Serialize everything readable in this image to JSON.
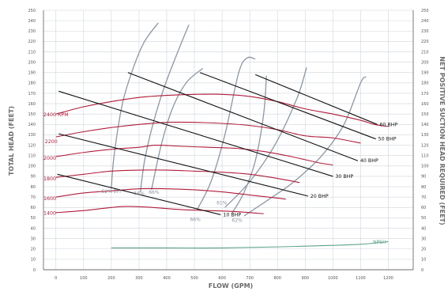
{
  "chart_data": {
    "type": "line",
    "title": "",
    "xlabel": "FLOW (GPM)",
    "ylabel": "TOTAL HEAD (FEET)",
    "y2label": "NET POSITIVE SUCTION HEAD REQUIRED (FEET)",
    "xlim": [
      -45,
      1290
    ],
    "ylim": [
      0,
      250
    ],
    "x_ticks": [
      0,
      100,
      200,
      300,
      400,
      500,
      600,
      700,
      800,
      900,
      1000,
      1100,
      1200
    ],
    "y_ticks": [
      0,
      10,
      20,
      30,
      40,
      50,
      60,
      70,
      80,
      90,
      100,
      110,
      120,
      130,
      140,
      150,
      160,
      170,
      180,
      190,
      200,
      210,
      220,
      230,
      240,
      250
    ],
    "grid": true,
    "colors": {
      "rpm": "#b01c3a",
      "bhp": "#111111",
      "eff": "#8c97a3",
      "npsh": "#5fa38a",
      "grid": "#cfd6dc"
    },
    "rpm_curves": [
      {
        "name": "1400 RPM",
        "label": "1400",
        "label_x": -45,
        "label_y": 53,
        "points": [
          [
            0,
            55
          ],
          [
            100,
            57
          ],
          [
            200,
            60
          ],
          [
            260,
            61
          ],
          [
            350,
            60
          ],
          [
            450,
            58
          ],
          [
            550,
            57
          ],
          [
            650,
            56
          ],
          [
            750,
            54
          ]
        ]
      },
      {
        "name": "1600 RPM",
        "label": "1600",
        "label_x": -45,
        "label_y": 67,
        "points": [
          [
            0,
            70
          ],
          [
            100,
            74
          ],
          [
            200,
            76
          ],
          [
            300,
            78
          ],
          [
            400,
            78
          ],
          [
            500,
            77
          ],
          [
            600,
            75
          ],
          [
            700,
            72
          ],
          [
            800,
            69
          ],
          [
            830,
            68
          ]
        ]
      },
      {
        "name": "1800 RPM",
        "label": "1800",
        "label_x": -45,
        "label_y": 86,
        "points": [
          [
            0,
            89
          ],
          [
            100,
            92
          ],
          [
            200,
            95
          ],
          [
            300,
            96
          ],
          [
            400,
            96
          ],
          [
            500,
            95
          ],
          [
            600,
            94
          ],
          [
            700,
            92
          ],
          [
            800,
            88
          ],
          [
            880,
            84
          ]
        ]
      },
      {
        "name": "2000 RPM",
        "label": "2000",
        "label_x": -45,
        "label_y": 106,
        "points": [
          [
            0,
            109
          ],
          [
            100,
            113
          ],
          [
            200,
            116
          ],
          [
            300,
            118
          ],
          [
            360,
            120
          ],
          [
            450,
            119
          ],
          [
            550,
            118
          ],
          [
            650,
            117
          ],
          [
            750,
            114
          ],
          [
            850,
            109
          ],
          [
            950,
            103
          ],
          [
            1000,
            101
          ]
        ]
      },
      {
        "name": "2200 RPM",
        "label": "2200",
        "label_x": -40,
        "label_y": 122,
        "points": [
          [
            0,
            128
          ],
          [
            100,
            133
          ],
          [
            200,
            137
          ],
          [
            300,
            140
          ],
          [
            400,
            142
          ],
          [
            500,
            142
          ],
          [
            600,
            141
          ],
          [
            700,
            139
          ],
          [
            800,
            135
          ],
          [
            900,
            129
          ],
          [
            1000,
            127
          ],
          [
            1100,
            122
          ]
        ]
      },
      {
        "name": "2400 RPM",
        "label": "2400 RPM",
        "label_x": -45,
        "label_y": 148,
        "points": [
          [
            0,
            150
          ],
          [
            100,
            157
          ],
          [
            200,
            162
          ],
          [
            300,
            166
          ],
          [
            400,
            168
          ],
          [
            500,
            169
          ],
          [
            600,
            169
          ],
          [
            700,
            167
          ],
          [
            800,
            162
          ],
          [
            900,
            155
          ],
          [
            1000,
            150
          ],
          [
            1100,
            144
          ],
          [
            1150,
            140
          ],
          [
            1200,
            138
          ]
        ]
      }
    ],
    "bhp_lines": [
      {
        "name": "10 BHP",
        "label": "10 BHP",
        "points": [
          [
            5,
            92
          ],
          [
            595,
            53
          ]
        ]
      },
      {
        "name": "20 BHP",
        "label": "20 BHP",
        "points": [
          [
            10,
            131
          ],
          [
            910,
            71
          ]
        ]
      },
      {
        "name": "30 BHP",
        "label": "30 BHP",
        "points": [
          [
            10,
            172
          ],
          [
            1000,
            90
          ]
        ]
      },
      {
        "name": "40 BHP",
        "label": "40 BHP",
        "points": [
          [
            260,
            190
          ],
          [
            1090,
            105
          ]
        ]
      },
      {
        "name": "50 BHP",
        "label": "50 BHP",
        "points": [
          [
            520,
            190
          ],
          [
            1155,
            126
          ]
        ]
      },
      {
        "name": "60 BHP",
        "label": "60 BHP",
        "points": [
          [
            720,
            188
          ],
          [
            1160,
            140
          ]
        ]
      }
    ],
    "efficiency_curves": [
      {
        "name": "52% EFF",
        "label": "52% EFF",
        "label_x": 165,
        "label_y": 74,
        "points": [
          [
            200,
            78
          ],
          [
            210,
            110
          ],
          [
            240,
            160
          ],
          [
            280,
            195
          ],
          [
            320,
            220
          ],
          [
            370,
            238
          ]
        ]
      },
      {
        "name": "56%",
        "label": "56%",
        "label_x": 282,
        "label_y": 72,
        "points": [
          [
            305,
            75
          ],
          [
            320,
            105
          ],
          [
            350,
            140
          ],
          [
            390,
            175
          ],
          [
            440,
            210
          ],
          [
            480,
            236
          ]
        ]
      },
      {
        "name": "66%",
        "label": "66%",
        "label_x": 335,
        "label_y": 73,
        "points": [
          [
            345,
            77
          ],
          [
            380,
            120
          ],
          [
            420,
            155
          ],
          [
            470,
            180
          ],
          [
            530,
            194
          ]
        ]
      },
      {
        "name": "66% inner",
        "label": "66%",
        "label_x": 484,
        "label_y": 47,
        "points": [
          [
            510,
            58
          ],
          [
            560,
            85
          ],
          [
            610,
            130
          ],
          [
            660,
            190
          ],
          [
            690,
            204
          ],
          [
            720,
            203
          ]
        ]
      },
      {
        "name": "62%",
        "label": "62%",
        "label_x": 635,
        "label_y": 46,
        "points": [
          [
            635,
            54
          ],
          [
            680,
            75
          ],
          [
            720,
            105
          ],
          [
            750,
            150
          ],
          [
            760,
            187
          ]
        ]
      },
      {
        "name": "62% outer",
        "label": "",
        "label_x": 0,
        "label_y": 0,
        "points": [
          [
            610,
            60
          ],
          [
            700,
            85
          ],
          [
            790,
            120
          ],
          [
            870,
            165
          ],
          [
            905,
            195
          ]
        ]
      },
      {
        "name": "61%",
        "label": "61%",
        "label_x": 580,
        "label_y": 63,
        "points": [
          [
            680,
            52
          ],
          [
            770,
            68
          ],
          [
            860,
            85
          ],
          [
            960,
            110
          ],
          [
            1040,
            140
          ],
          [
            1100,
            180
          ],
          [
            1120,
            186
          ]
        ]
      }
    ],
    "npsh": {
      "name": "NPSH",
      "label": "NPSH",
      "label_x": 1145,
      "label_y": 25,
      "points": [
        [
          200,
          21
        ],
        [
          400,
          21
        ],
        [
          600,
          21
        ],
        [
          800,
          22
        ],
        [
          1000,
          23.5
        ],
        [
          1100,
          24.5
        ],
        [
          1200,
          27
        ]
      ]
    }
  }
}
